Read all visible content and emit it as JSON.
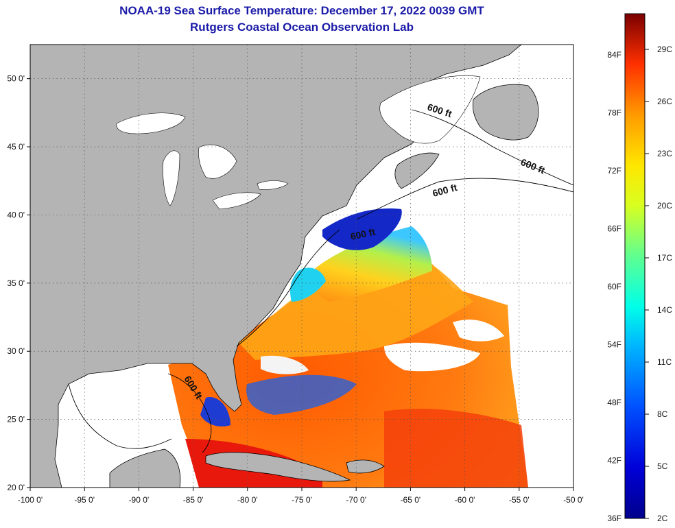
{
  "title": {
    "line1": "NOAA-19 Sea Surface Temperature:  December 17, 2022 0039 GMT",
    "line2": "Rutgers Coastal Ocean Observation Lab"
  },
  "map": {
    "lon_range": [
      -100,
      -50
    ],
    "lat_range": [
      20,
      52.5
    ],
    "lon_ticks": [
      {
        "value": -100,
        "label": "-100 0'"
      },
      {
        "value": -95,
        "label": "-95 0'"
      },
      {
        "value": -90,
        "label": "-90 0'"
      },
      {
        "value": -85,
        "label": "-85 0'"
      },
      {
        "value": -80,
        "label": "-80 0'"
      },
      {
        "value": -75,
        "label": "-75 0'"
      },
      {
        "value": -70,
        "label": "-70 0'"
      },
      {
        "value": -65,
        "label": "-65 0'"
      },
      {
        "value": -60,
        "label": "-60 0'"
      },
      {
        "value": -55,
        "label": "-55 0'"
      },
      {
        "value": -50,
        "label": "-50 0'"
      }
    ],
    "lat_ticks": [
      {
        "value": 20,
        "label": "20 0'"
      },
      {
        "value": 25,
        "label": "25 0'"
      },
      {
        "value": 30,
        "label": "30 0'"
      },
      {
        "value": 35,
        "label": "35 0'"
      },
      {
        "value": 40,
        "label": "40 0'"
      },
      {
        "value": 45,
        "label": "45 0'"
      },
      {
        "value": 50,
        "label": "50 0'"
      }
    ],
    "contour_labels": [
      "600 ft",
      "600 ft",
      "600 ft",
      "600 ft",
      "600 ft"
    ],
    "land_color": "#b4b4b4"
  },
  "colorbar": {
    "fahrenheit_labels": [
      "84F",
      "78F",
      "72F",
      "66F",
      "60F",
      "54F",
      "48F",
      "42F",
      "36F"
    ],
    "celsius_labels": [
      "29C",
      "26C",
      "23C",
      "20C",
      "17C",
      "14C",
      "11C",
      "8C",
      "5C",
      "2C"
    ]
  }
}
